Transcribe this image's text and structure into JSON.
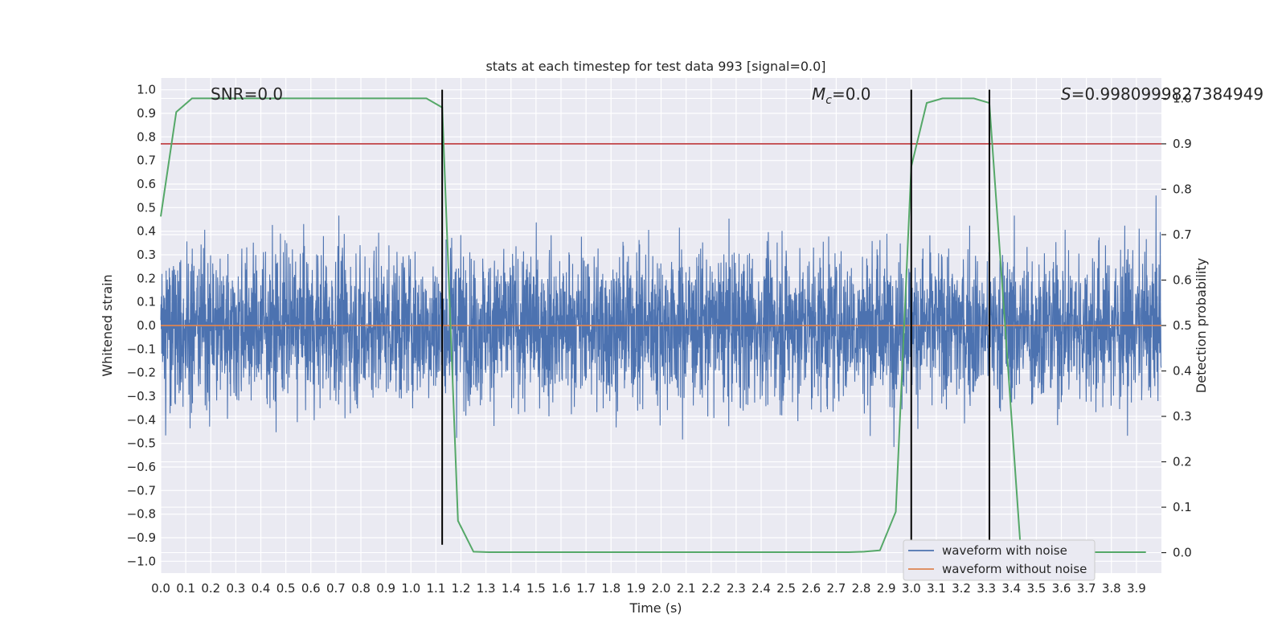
{
  "chart_data": {
    "type": "line",
    "title": "stats at each timestep for test data 993 [signal=0.0]",
    "xlabel": "Time (s)",
    "ylabel": "Whitened strain",
    "y2label": "Detection probability",
    "xlim": [
      0.0,
      4.0
    ],
    "ylim": [
      -1.05,
      1.05
    ],
    "y2lim": [
      -0.045,
      1.045
    ],
    "x_ticks": [
      0.0,
      0.1,
      0.2,
      0.3,
      0.4,
      0.5,
      0.6,
      0.7,
      0.8,
      0.9,
      1.0,
      1.1,
      1.2,
      1.3,
      1.4,
      1.5,
      1.6,
      1.7,
      1.8,
      1.9,
      2.0,
      2.1,
      2.2,
      2.3,
      2.4,
      2.5,
      2.6,
      2.7,
      2.8,
      2.9,
      3.0,
      3.1,
      3.2,
      3.3,
      3.4,
      3.5,
      3.6,
      3.7,
      3.8,
      3.9
    ],
    "x_tick_labels": [
      "0.0",
      "0.1",
      "0.2",
      "0.3",
      "0.4",
      "0.5",
      "0.6",
      "0.7",
      "0.8",
      "0.9",
      "1.0",
      "1.1",
      "1.2",
      "1.3",
      "1.4",
      "1.5",
      "1.6",
      "1.7",
      "1.8",
      "1.9",
      "2.0",
      "2.1",
      "2.2",
      "2.3",
      "2.4",
      "2.5",
      "2.6",
      "2.7",
      "2.8",
      "2.9",
      "3.0",
      "3.1",
      "3.2",
      "3.3",
      "3.4",
      "3.5",
      "3.6",
      "3.7",
      "3.8",
      "3.9"
    ],
    "y_ticks": [
      -1.0,
      -0.9,
      -0.8,
      -0.7,
      -0.6,
      -0.5,
      -0.4,
      -0.3,
      -0.2,
      -0.1,
      0.0,
      0.1,
      0.2,
      0.3,
      0.4,
      0.5,
      0.6,
      0.7,
      0.8,
      0.9,
      1.0
    ],
    "y_tick_labels": [
      "−1.0",
      "−0.9",
      "−0.8",
      "−0.7",
      "−0.6",
      "−0.5",
      "−0.4",
      "−0.3",
      "−0.2",
      "−0.1",
      "0.0",
      "0.1",
      "0.2",
      "0.3",
      "0.4",
      "0.5",
      "0.6",
      "0.7",
      "0.8",
      "0.9",
      "1.0"
    ],
    "y2_ticks": [
      0.0,
      0.1,
      0.2,
      0.3,
      0.4,
      0.5,
      0.6,
      0.7,
      0.8,
      0.9,
      1.0
    ],
    "y2_tick_labels": [
      "0.0",
      "0.1",
      "0.2",
      "0.3",
      "0.4",
      "0.5",
      "0.6",
      "0.7",
      "0.8",
      "0.9",
      "1.0"
    ],
    "grid": true,
    "legend": "lower-right",
    "annotations": [
      {
        "prefix": "SNR",
        "text": "=0.0"
      },
      {
        "prefix": "M",
        "subscript": "c",
        "text": "=0.0"
      },
      {
        "prefix": "S",
        "text": "=0.9980999827384949"
      }
    ],
    "series": [
      {
        "name": "waveform with noise",
        "color": "#4c72b0",
        "amplitude": 0.6,
        "peak_abs": 1.0
      },
      {
        "name": "waveform without noise",
        "color": "#dd8452",
        "values": [
          0.0,
          0.0
        ],
        "x": [
          0.0,
          4.0
        ]
      },
      {
        "color": "#55a868",
        "axis": "right",
        "x": [
          0.0,
          0.062,
          0.125,
          0.188,
          0.25,
          0.312,
          0.375,
          0.438,
          0.5,
          0.562,
          0.625,
          0.688,
          0.75,
          0.812,
          0.875,
          0.938,
          1.0,
          1.062,
          1.125,
          1.188,
          1.25,
          1.312,
          1.375,
          1.438,
          1.5,
          1.562,
          1.625,
          1.688,
          1.75,
          1.812,
          1.875,
          1.938,
          2.0,
          2.062,
          2.125,
          2.188,
          2.25,
          2.312,
          2.375,
          2.438,
          2.5,
          2.562,
          2.625,
          2.688,
          2.75,
          2.812,
          2.875,
          2.938,
          3.0,
          3.062,
          3.125,
          3.188,
          3.25,
          3.312,
          3.375,
          3.438,
          3.5,
          3.562,
          3.625,
          3.688,
          3.75,
          3.812,
          3.875,
          3.938
        ],
        "values": [
          0.74,
          0.97,
          1.0,
          1.0,
          1.0,
          1.0,
          1.0,
          1.0,
          1.0,
          1.0,
          1.0,
          1.0,
          1.0,
          1.0,
          1.0,
          1.0,
          1.0,
          1.0,
          0.98,
          0.07,
          0.002,
          0.001,
          0.001,
          0.001,
          0.001,
          0.001,
          0.001,
          0.001,
          0.001,
          0.001,
          0.001,
          0.001,
          0.001,
          0.001,
          0.001,
          0.001,
          0.001,
          0.001,
          0.001,
          0.001,
          0.001,
          0.001,
          0.001,
          0.001,
          0.001,
          0.002,
          0.005,
          0.09,
          0.85,
          0.99,
          1.0,
          1.0,
          1.0,
          0.99,
          0.5,
          0.002,
          0.001,
          0.001,
          0.001,
          0.001,
          0.001,
          0.001,
          0.001,
          0.001
        ]
      },
      {
        "color": "#c44e52",
        "axis": "right",
        "values": [
          0.9,
          0.9
        ],
        "x": [
          0.0,
          4.0
        ]
      }
    ],
    "vertical_lines": [
      1.125,
      3.0,
      3.3125
    ]
  }
}
